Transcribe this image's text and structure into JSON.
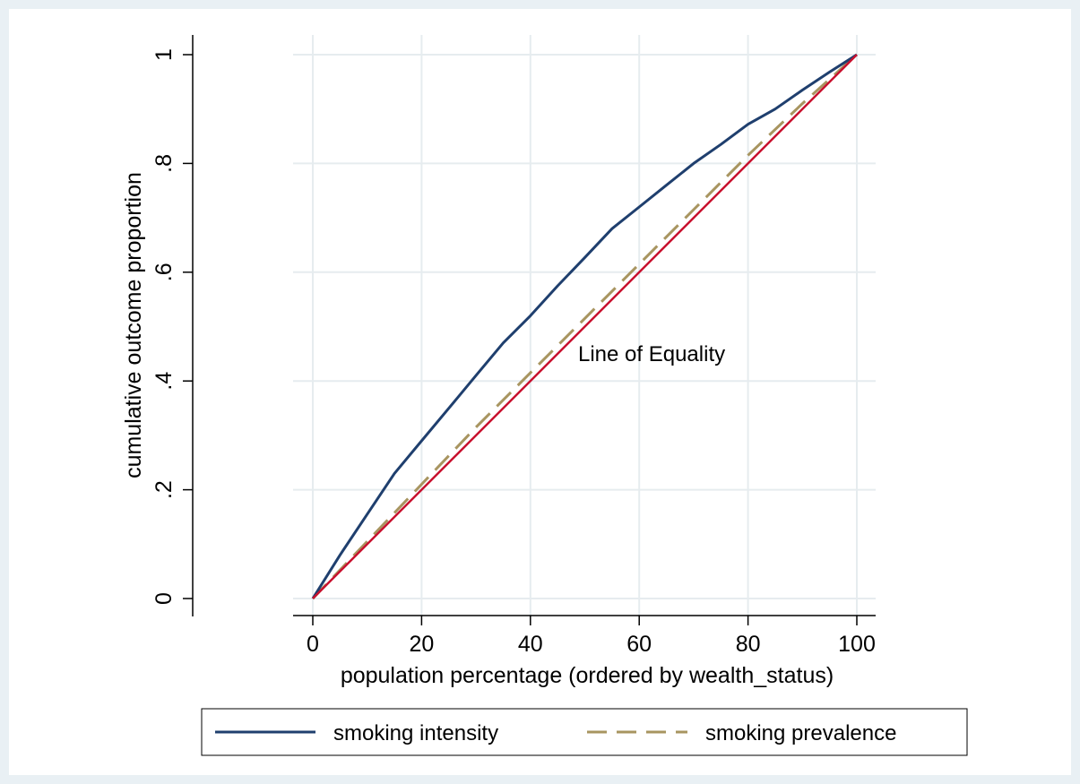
{
  "chart_data": {
    "type": "line",
    "xlabel": "population percentage (ordered by wealth_status)",
    "ylabel": "cumulative outcome proportion",
    "xlim": [
      0,
      100
    ],
    "ylim": [
      0,
      1
    ],
    "xticks": [
      0,
      20,
      40,
      60,
      80,
      100
    ],
    "xtick_labels": [
      "0",
      "20",
      "40",
      "60",
      "80",
      "100"
    ],
    "yticks": [
      0,
      0.2,
      0.4,
      0.6,
      0.8,
      1
    ],
    "ytick_labels": [
      "0",
      ".2",
      ".4",
      ".6",
      ".8",
      "1"
    ],
    "grid": true,
    "legend_position": "bottom",
    "annotation": "Line of Equality",
    "series": [
      {
        "name": "smoking intensity",
        "color": "#1f3f6e",
        "style": "solid",
        "x": [
          0,
          5,
          10,
          15,
          20,
          25,
          30,
          35,
          40,
          45,
          50,
          55,
          60,
          65,
          70,
          75,
          80,
          85,
          90,
          95,
          100
        ],
        "y": [
          0,
          0.08,
          0.155,
          0.23,
          0.29,
          0.35,
          0.41,
          0.47,
          0.52,
          0.575,
          0.627,
          0.68,
          0.72,
          0.76,
          0.8,
          0.835,
          0.872,
          0.9,
          0.935,
          0.968,
          1.0
        ]
      },
      {
        "name": "smoking prevalence",
        "color": "#a89560",
        "style": "dashed",
        "x": [
          0,
          10,
          20,
          30,
          40,
          50,
          60,
          70,
          80,
          90,
          100
        ],
        "y": [
          0,
          0.105,
          0.21,
          0.315,
          0.415,
          0.515,
          0.615,
          0.715,
          0.815,
          0.91,
          1.0
        ]
      },
      {
        "color": "#c8102e",
        "style": "solid",
        "x": [
          0,
          100
        ],
        "y": [
          0,
          1
        ]
      }
    ]
  }
}
